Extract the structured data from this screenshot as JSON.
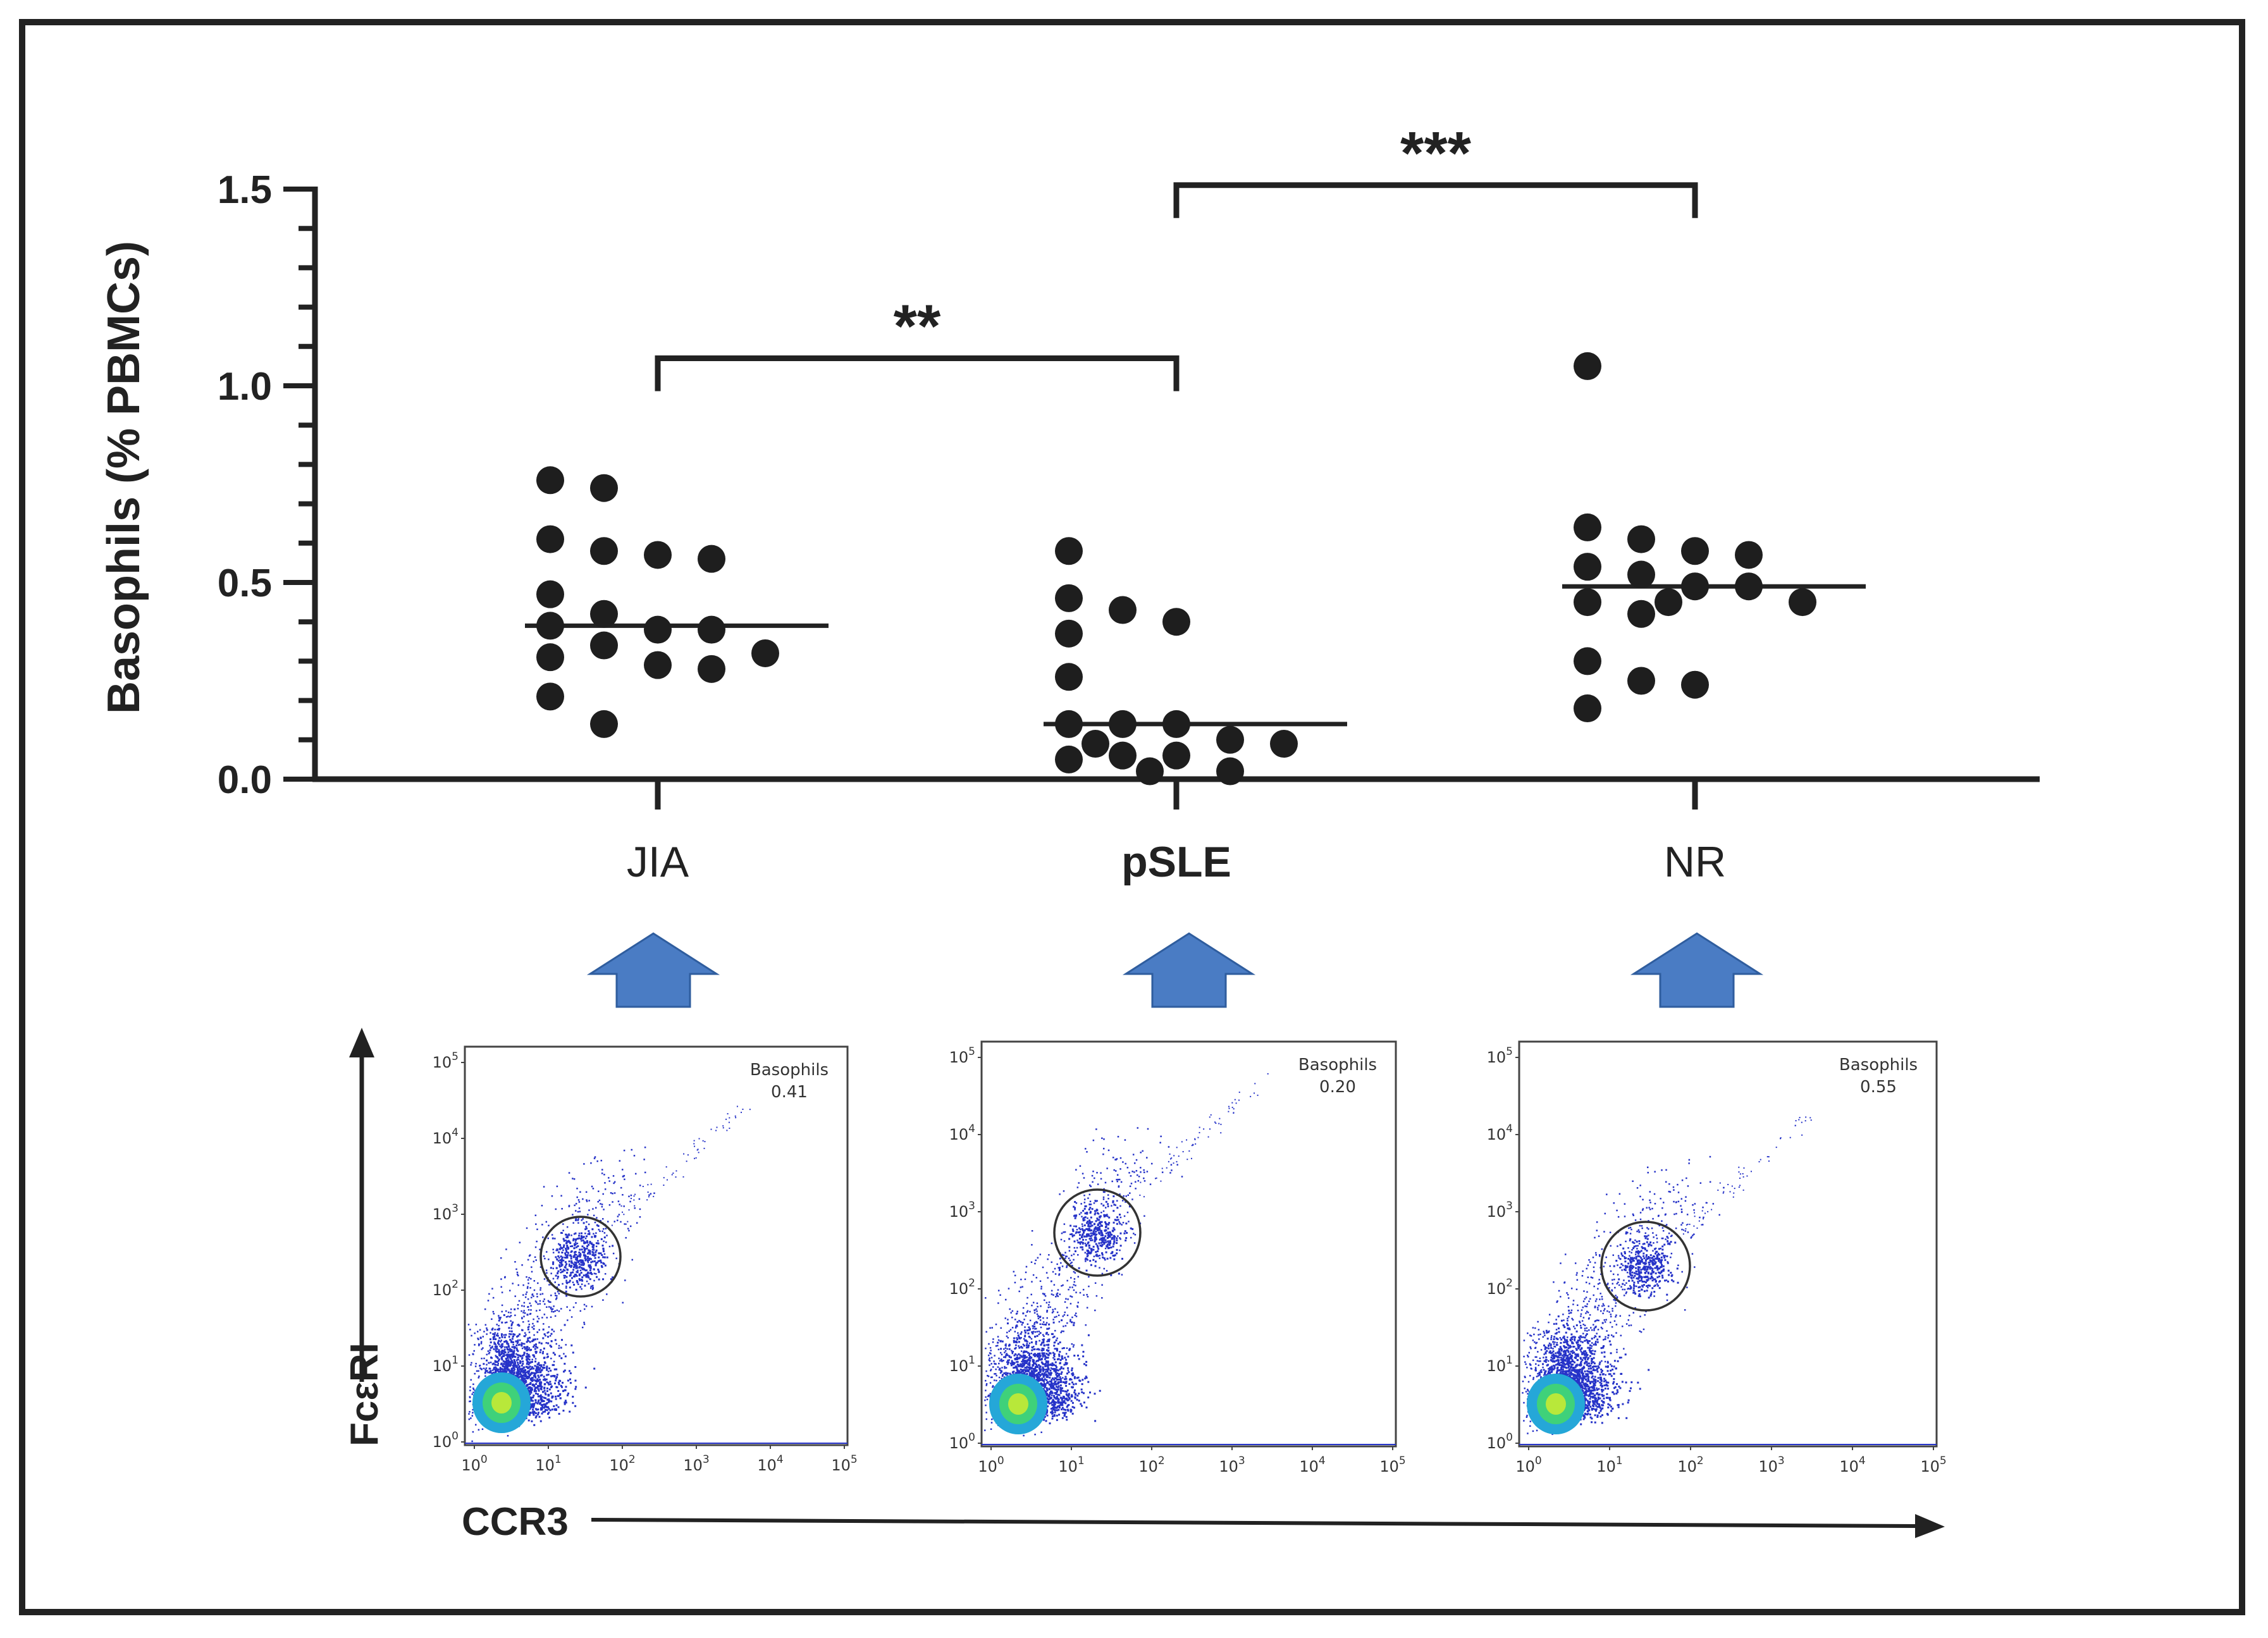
{
  "chart_data": {
    "type": "scatter",
    "ylabel": "Basophils (% PBMCs)",
    "ylim": [
      0,
      1.5
    ],
    "yticks": [
      "0.0",
      "0.5",
      "1.0",
      "1.5"
    ],
    "yminor_step": 0.1,
    "categories": [
      "JIA",
      "pSLE",
      "NR"
    ],
    "series": [
      {
        "name": "JIA",
        "median": 0.39,
        "values": [
          0.74,
          0.76,
          0.61,
          0.56,
          0.58,
          0.57,
          0.47,
          0.39,
          0.42,
          0.38,
          0.38,
          0.34,
          0.31,
          0.32,
          0.28,
          0.29,
          0.21,
          0.14
        ]
      },
      {
        "name": "pSLE",
        "median": 0.14,
        "values": [
          0.58,
          0.43,
          0.37,
          0.4,
          0.46,
          0.26,
          0.14,
          0.14,
          0.14,
          0.09,
          0.1,
          0.09,
          0.06,
          0.06,
          0.05,
          0.02,
          0.02
        ]
      },
      {
        "name": "NR",
        "median": 0.49,
        "values": [
          1.05,
          0.64,
          0.61,
          0.58,
          0.57,
          0.54,
          0.52,
          0.49,
          0.49,
          0.45,
          0.45,
          0.45,
          0.42,
          0.3,
          0.24,
          0.25,
          0.18
        ]
      }
    ],
    "significance": [
      {
        "from": "JIA",
        "to": "pSLE",
        "level_y": 1.07,
        "label": "**"
      },
      {
        "from": "pSLE",
        "to": "NR",
        "level_y": 1.51,
        "label": "***"
      }
    ]
  },
  "facs": {
    "y_axis_label": "FcεRI",
    "x_axis_label": "CCR3",
    "tick_base": "10",
    "tick_exponents": [
      "0",
      "1",
      "2",
      "3",
      "4",
      "5"
    ],
    "panels": [
      {
        "name": "JIA",
        "gate_label": "Basophils",
        "gate_value": "0.41"
      },
      {
        "name": "pSLE",
        "gate_label": "Basophils",
        "gate_value": "0.20"
      },
      {
        "name": "NR",
        "gate_label": "Basophils",
        "gate_value": "0.55"
      }
    ]
  },
  "colors": {
    "dot": "#1e1e1e",
    "axis": "#222222",
    "arrow": "#4a7cc4",
    "arrow_stroke": "#2f5d9e",
    "facs_dot": "#2633c8",
    "facs_core_outer": "#25a7d8",
    "facs_core_mid": "#3fd17a",
    "facs_core_inner": "#b8e83a"
  }
}
